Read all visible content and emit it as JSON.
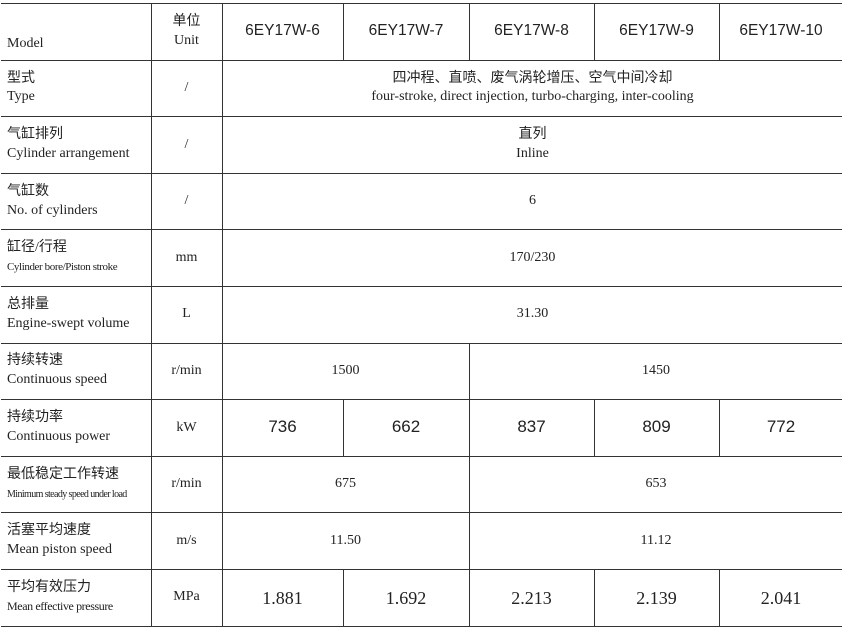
{
  "header": {
    "model_label": "Model",
    "unit_cn": "单位",
    "unit_en": "Unit",
    "models": [
      "6EY17W-6",
      "6EY17W-7",
      "6EY17W-8",
      "6EY17W-9",
      "6EY17W-10"
    ]
  },
  "rows": [
    {
      "cn": "型式",
      "en": "Type",
      "unit": "/",
      "value_cn": "四冲程、直喷、废气涡轮增压、空气中间冷却",
      "value_en": "four-stroke, direct injection, turbo-charging, inter-cooling"
    },
    {
      "cn": "气缸排列",
      "en": "Cylinder arrangement",
      "unit": "/",
      "value_cn": "直列",
      "value_en": "Inline"
    },
    {
      "cn": "气缸数",
      "en": "No. of cylinders",
      "unit": "/",
      "value": "6"
    },
    {
      "cn": "缸径/行程",
      "en": "Cylinder bore/Piston stroke",
      "unit": "mm",
      "value": "170/230"
    },
    {
      "cn": "总排量",
      "en": "Engine-swept volume",
      "unit": "L",
      "value": "31.30"
    },
    {
      "cn": "持续转速",
      "en": "Continuous speed",
      "unit": "r/min",
      "values": [
        "1500",
        "1450"
      ]
    },
    {
      "cn": "持续功率",
      "en": "Continuous power",
      "unit": "kW",
      "values": [
        "736",
        "662",
        "837",
        "809",
        "772"
      ]
    },
    {
      "cn": "最低稳定工作转速",
      "en": "Minimum steady speed under load",
      "unit": "r/min",
      "values": [
        "675",
        "653"
      ]
    },
    {
      "cn": "活塞平均速度",
      "en": "Mean piston speed",
      "unit": "m/s",
      "values": [
        "11.50",
        "11.12"
      ]
    },
    {
      "cn": "平均有效压力",
      "en": "Mean effective pressure",
      "unit": "MPa",
      "values": [
        "1.881",
        "1.692",
        "2.213",
        "2.139",
        "2.041"
      ]
    }
  ]
}
